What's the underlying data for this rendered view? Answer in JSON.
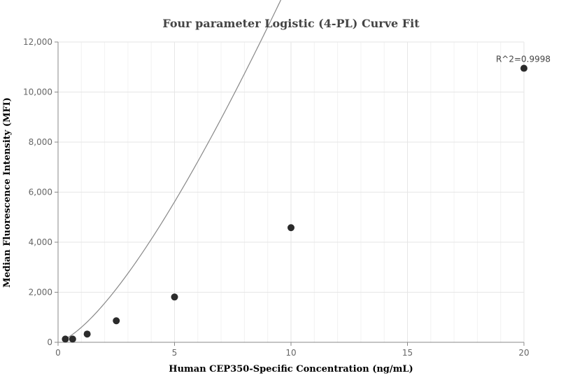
{
  "chart_data": {
    "type": "scatter",
    "title": "Four parameter Logistic (4-PL) Curve Fit",
    "xlabel": "Human CEP350-Specific Concentration (ng/mL)",
    "ylabel": "Median Fluorescence Intensity (MFI)",
    "xlim": [
      0,
      20
    ],
    "ylim": [
      0,
      12000
    ],
    "x_ticks": [
      0,
      5,
      10,
      15,
      20
    ],
    "y_ticks": [
      0,
      2000,
      4000,
      6000,
      8000,
      10000,
      12000
    ],
    "x_tick_labels": [
      "0",
      "5",
      "10",
      "15",
      "20"
    ],
    "y_tick_labels": [
      "0",
      "2,000",
      "4,000",
      "6,000",
      "8,000",
      "10,000",
      "12,000"
    ],
    "grid": true,
    "points": [
      {
        "x": 0.3125,
        "y": 130
      },
      {
        "x": 0.625,
        "y": 130
      },
      {
        "x": 1.25,
        "y": 330
      },
      {
        "x": 2.5,
        "y": 860
      },
      {
        "x": 5,
        "y": 1810
      },
      {
        "x": 10,
        "y": 4580
      },
      {
        "x": 20,
        "y": 10950
      }
    ],
    "fit_curve": {
      "model": "4PL",
      "a": 20,
      "b": 1.42,
      "c": 81.5,
      "d": 300000
    },
    "annotation": "R^2=0.9998",
    "colors": {
      "point": "#2b2b2b",
      "curve": "#888888"
    }
  }
}
